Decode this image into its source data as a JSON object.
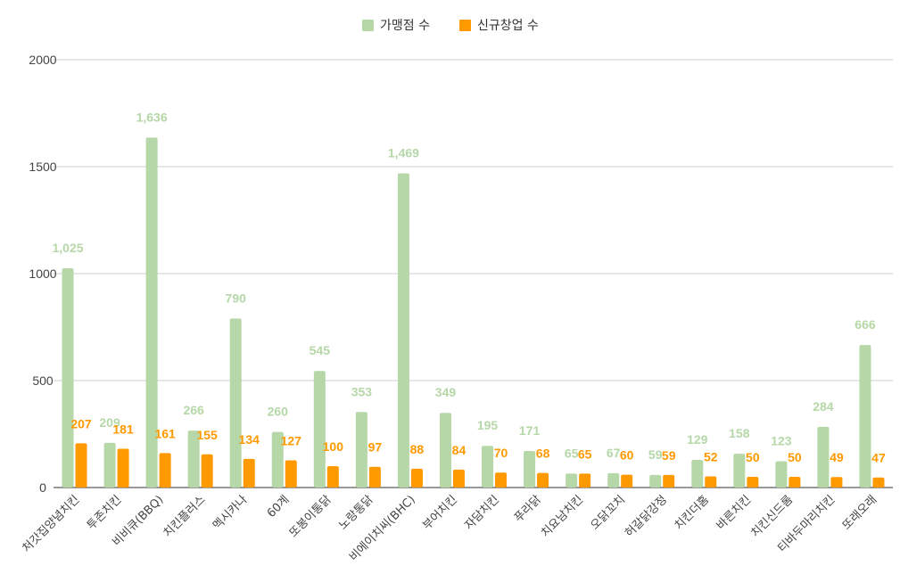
{
  "chart_data": {
    "type": "bar",
    "categories": [
      "처갓집양념치킨",
      "투존치킨",
      "비비큐(BBQ)",
      "치킨플러스",
      "멕시카나",
      "60계",
      "또봉이통닭",
      "노랑통닭",
      "비에이치씨(BHC)",
      "부어치킨",
      "자담치킨",
      "푸라닭",
      "치요남치킨",
      "오닭꼬치",
      "허갈닭강정",
      "치킨더홈",
      "바른치킨",
      "치킨신드롬",
      "티바두마리치킨",
      "또래오래"
    ],
    "series": [
      {
        "name": "가맹점 수",
        "color": "#b6d7a8",
        "values": [
          1025,
          209,
          1636,
          266,
          790,
          260,
          545,
          353,
          1469,
          349,
          195,
          171,
          65,
          67,
          59,
          129,
          158,
          123,
          284,
          666
        ],
        "labels": [
          "1,025",
          "209",
          "1,636",
          "266",
          "790",
          "260",
          "545",
          "353",
          "1,469",
          "349",
          "195",
          "171",
          "65",
          "67",
          "59",
          "129",
          "158",
          "123",
          "284",
          "666"
        ]
      },
      {
        "name": "신규창업 수",
        "color": "#ff9900",
        "values": [
          207,
          181,
          161,
          155,
          134,
          127,
          100,
          97,
          88,
          84,
          70,
          68,
          65,
          60,
          59,
          52,
          50,
          50,
          49,
          47
        ],
        "labels": [
          "207",
          "181",
          "161",
          "155",
          "134",
          "127",
          "100",
          "97",
          "88",
          "84",
          "70",
          "68",
          "65",
          "60",
          "59",
          "52",
          "50",
          "50",
          "49",
          "47"
        ]
      }
    ],
    "yticks": [
      "0",
      "500",
      "1000",
      "1500",
      "2000"
    ],
    "ylim": [
      0,
      2000
    ],
    "grid": true,
    "legend_position": "top-center"
  }
}
